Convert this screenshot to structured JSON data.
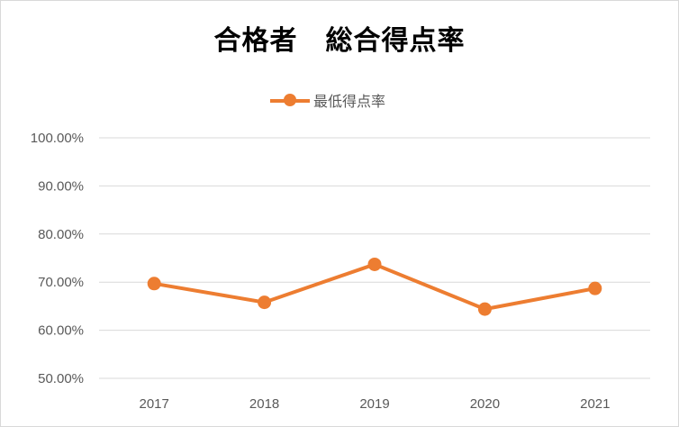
{
  "chart_data": {
    "type": "line",
    "title": "合格者　総合得点率",
    "xlabel": "",
    "ylabel": "",
    "categories": [
      "2017",
      "2018",
      "2019",
      "2020",
      "2021"
    ],
    "series": [
      {
        "name": "最低得点率",
        "values": [
          69.7,
          65.8,
          73.7,
          64.4,
          68.7
        ],
        "color": "#ed7d31"
      }
    ],
    "ylim": [
      50,
      100
    ],
    "y_ticks": [
      "100.00%",
      "90.00%",
      "80.00%",
      "70.00%",
      "60.00%",
      "50.00%"
    ],
    "y_tick_values": [
      100,
      90,
      80,
      70,
      60,
      50
    ],
    "grid": true,
    "legend_position": "top"
  },
  "colors": {
    "series": "#ed7d31",
    "grid": "#d9d9d9",
    "text": "#595959"
  }
}
